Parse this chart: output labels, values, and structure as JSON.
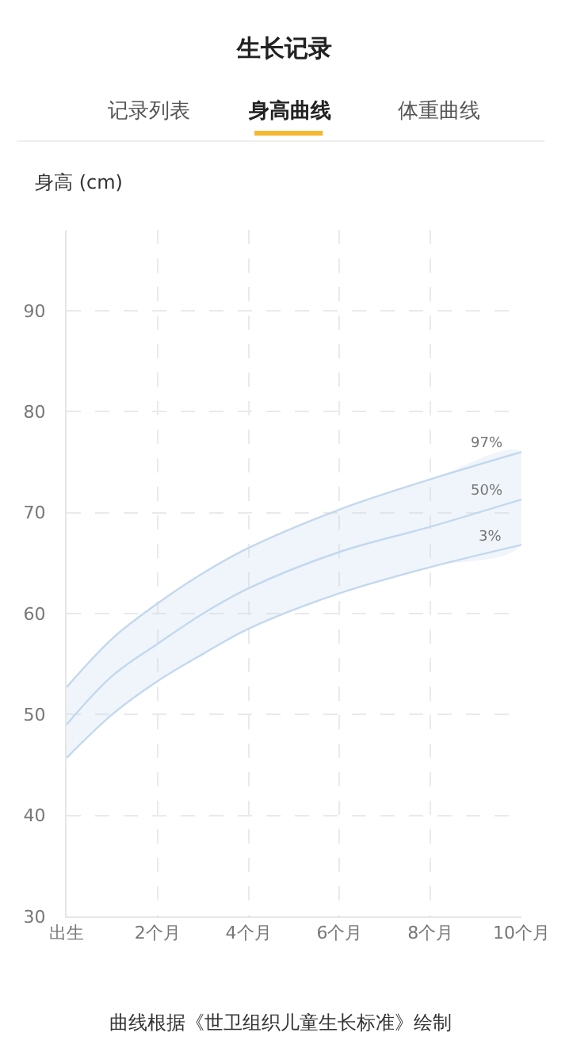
{
  "chart_data": {
    "type": "line",
    "title": "生长记录",
    "ylabel": "身高 (cm)",
    "annotations": [
      "记录列表",
      "身高曲线",
      "体重曲线",
      "曲线根据《世卫组织儿童生长标准》绘制"
    ],
    "x": [
      0,
      1,
      2,
      3,
      4,
      6,
      8,
      10
    ],
    "series": [
      {
        "name": "97%",
        "color": "#c3d8ee",
        "values": [
          52.7,
          57.5,
          61,
          64,
          66.5,
          70.3,
          73.3,
          76
        ]
      },
      {
        "name": "50%",
        "color": "#c3d8ee",
        "values": [
          49,
          53.8,
          57,
          60,
          62.5,
          66.1,
          68.6,
          71.3
        ],
        "lower": [
          45.7,
          50,
          53.3,
          56,
          58.5,
          62,
          64.6,
          66.8
        ],
        "upper": [
          52.7,
          57.5,
          61,
          64,
          66.5,
          70.3,
          73.3,
          76
        ]
      },
      {
        "name": "3%",
        "color": "#c3d8ee",
        "values": [
          45.7,
          50,
          53.3,
          56,
          58.5,
          62,
          64.6,
          66.8
        ]
      }
    ],
    "xlim": [
      0,
      10
    ],
    "xticks": [
      {
        "value": 0,
        "label": "出生"
      },
      {
        "value": 2,
        "label": "2个月"
      },
      {
        "value": 4,
        "label": "4个月"
      },
      {
        "value": 6,
        "label": "6个月"
      },
      {
        "value": 8,
        "label": "8个月"
      },
      {
        "value": 10,
        "label": "10个月"
      }
    ],
    "ylim": [
      30,
      98
    ],
    "yticks": [
      30,
      40,
      50,
      60,
      70,
      80,
      90
    ],
    "grid": true,
    "legend": false,
    "marker": "none",
    "line_style": "solid"
  }
}
